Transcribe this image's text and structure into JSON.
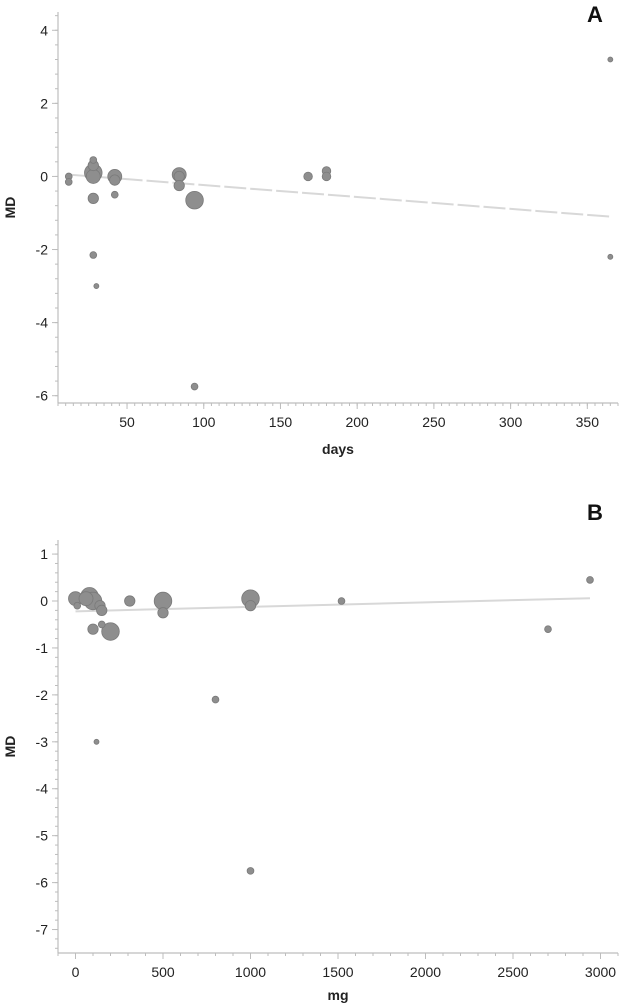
{
  "chart_data": [
    {
      "type": "scatter",
      "panel_label": "A",
      "xlabel": "days",
      "ylabel": "MD",
      "xlim": [
        5,
        370
      ],
      "ylim": [
        -6.2,
        4.5
      ],
      "xticks": [
        50,
        100,
        150,
        200,
        250,
        300,
        350
      ],
      "yticks": [
        -6,
        -4,
        -2,
        0,
        2,
        4
      ],
      "grid": false,
      "regression_line": {
        "style": "dashed",
        "color": "#d8d8d8",
        "x": [
          12,
          365
        ],
        "y": [
          0.05,
          -1.1
        ]
      },
      "series": [
        {
          "points": [
            {
              "x": 12,
              "y": 0.0,
              "size": 1
            },
            {
              "x": 12,
              "y": -0.15,
              "size": 1
            },
            {
              "x": 28,
              "y": 0.1,
              "size": 4
            },
            {
              "x": 28,
              "y": 0.0,
              "size": 3
            },
            {
              "x": 28,
              "y": 0.3,
              "size": 2
            },
            {
              "x": 28,
              "y": 0.45,
              "size": 1
            },
            {
              "x": 28,
              "y": -0.6,
              "size": 2
            },
            {
              "x": 28,
              "y": -2.15,
              "size": 1
            },
            {
              "x": 30,
              "y": -3.0,
              "size": 0.5
            },
            {
              "x": 42,
              "y": 0.0,
              "size": 3
            },
            {
              "x": 42,
              "y": -0.1,
              "size": 2
            },
            {
              "x": 42,
              "y": -0.5,
              "size": 1
            },
            {
              "x": 84,
              "y": 0.05,
              "size": 3
            },
            {
              "x": 84,
              "y": 0.0,
              "size": 2
            },
            {
              "x": 84,
              "y": -0.25,
              "size": 2
            },
            {
              "x": 94,
              "y": -0.65,
              "size": 4
            },
            {
              "x": 94,
              "y": -5.75,
              "size": 1
            },
            {
              "x": 168,
              "y": 0.0,
              "size": 1.5
            },
            {
              "x": 180,
              "y": 0.15,
              "size": 1.5
            },
            {
              "x": 180,
              "y": 0.0,
              "size": 1.5
            },
            {
              "x": 365,
              "y": 3.2,
              "size": 0.5
            },
            {
              "x": 365,
              "y": -2.2,
              "size": 0.5
            }
          ]
        }
      ]
    },
    {
      "type": "scatter",
      "panel_label": "B",
      "xlabel": "mg",
      "ylabel": "MD",
      "xlim": [
        -100,
        3100
      ],
      "ylim": [
        -7.5,
        1.3
      ],
      "xticks": [
        0,
        500,
        1000,
        1500,
        2000,
        2500,
        3000
      ],
      "yticks": [
        -7,
        -6,
        -5,
        -4,
        -3,
        -2,
        -1,
        0,
        1
      ],
      "grid": false,
      "regression_line": {
        "style": "solid",
        "color": "#d8d8d8",
        "x": [
          0,
          2940
        ],
        "y": [
          -0.22,
          0.06
        ]
      },
      "series": [
        {
          "points": [
            {
              "x": 0,
              "y": 0.05,
              "size": 3
            },
            {
              "x": 10,
              "y": -0.1,
              "size": 1
            },
            {
              "x": 60,
              "y": 0.05,
              "size": 3
            },
            {
              "x": 80,
              "y": 0.1,
              "size": 4
            },
            {
              "x": 100,
              "y": 0.0,
              "size": 4
            },
            {
              "x": 100,
              "y": -0.6,
              "size": 2
            },
            {
              "x": 120,
              "y": -3.0,
              "size": 0.5
            },
            {
              "x": 140,
              "y": -0.1,
              "size": 2
            },
            {
              "x": 150,
              "y": -0.5,
              "size": 1
            },
            {
              "x": 150,
              "y": -0.2,
              "size": 2
            },
            {
              "x": 200,
              "y": -0.65,
              "size": 4
            },
            {
              "x": 310,
              "y": 0.0,
              "size": 2
            },
            {
              "x": 500,
              "y": 0.0,
              "size": 4
            },
            {
              "x": 500,
              "y": -0.25,
              "size": 2
            },
            {
              "x": 800,
              "y": -2.1,
              "size": 1
            },
            {
              "x": 1000,
              "y": 0.05,
              "size": 4
            },
            {
              "x": 1000,
              "y": -0.1,
              "size": 2
            },
            {
              "x": 1000,
              "y": -5.75,
              "size": 1
            },
            {
              "x": 1520,
              "y": 0.0,
              "size": 1
            },
            {
              "x": 2700,
              "y": -0.6,
              "size": 1
            },
            {
              "x": 2940,
              "y": 0.45,
              "size": 1
            }
          ]
        }
      ]
    }
  ]
}
